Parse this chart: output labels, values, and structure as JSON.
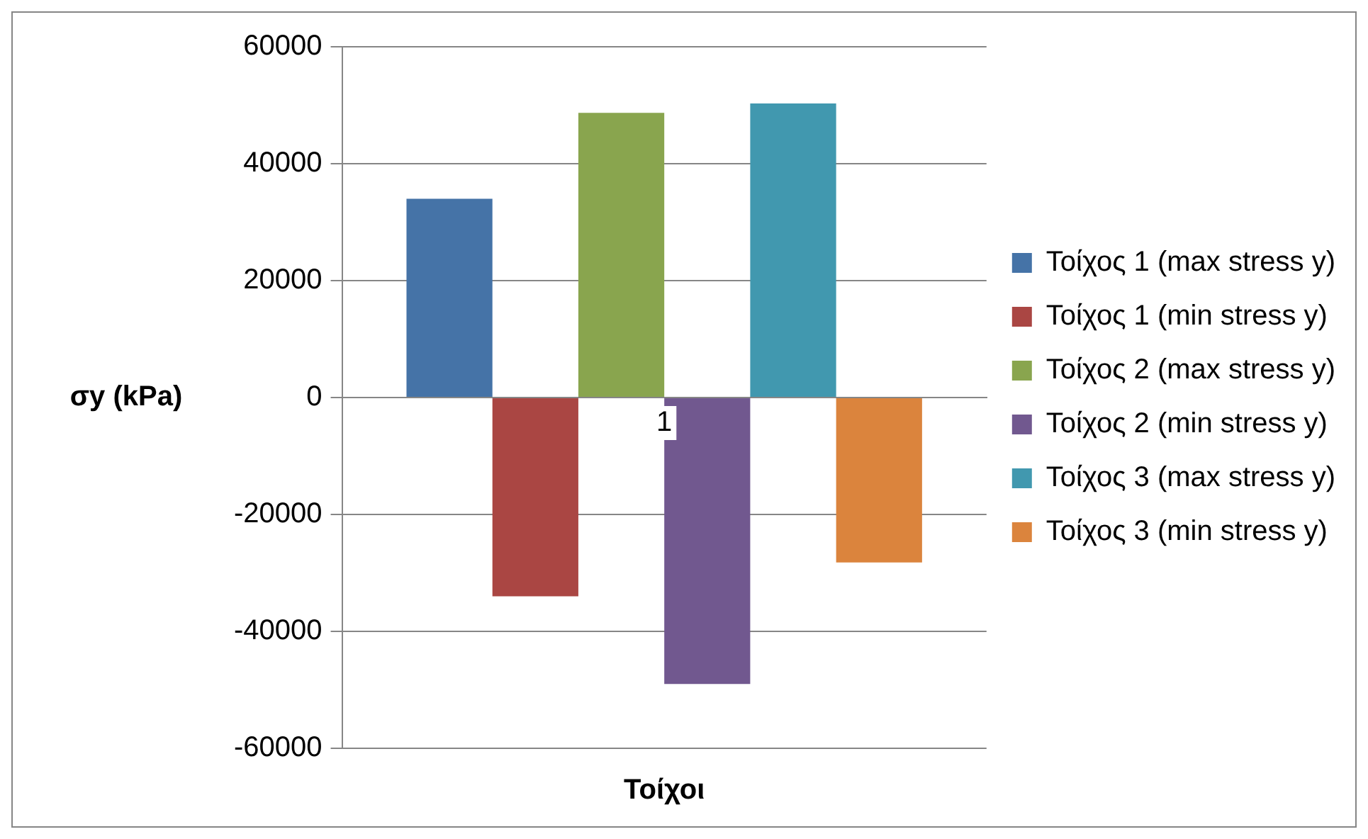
{
  "chart_data": {
    "type": "bar",
    "categories": [
      "1"
    ],
    "xlabel": "Τοίχοι",
    "ylabel": "σy (kPa)",
    "series": [
      {
        "name": "Τοίχος 1 (max stress y)",
        "color": "#4573a7",
        "values": [
          34000
        ]
      },
      {
        "name": "Τοίχος 1 (min stress y)",
        "color": "#aa4643",
        "values": [
          -34000
        ]
      },
      {
        "name": "Τοίχος 2 (max stress y)",
        "color": "#89a54e",
        "values": [
          48700
        ]
      },
      {
        "name": "Τοίχος 2 (min stress y)",
        "color": "#71588f",
        "values": [
          -49000
        ]
      },
      {
        "name": "Τοίχος 3 (max stress y)",
        "color": "#4198af",
        "values": [
          50300
        ]
      },
      {
        "name": "Τοίχος 3 (min stress y)",
        "color": "#db843d",
        "values": [
          -28200
        ]
      }
    ],
    "ylim": [
      -60000,
      60000
    ],
    "yticks": [
      -60000,
      -40000,
      -20000,
      0,
      20000,
      40000,
      60000
    ],
    "grid": "y",
    "legend": "right"
  }
}
